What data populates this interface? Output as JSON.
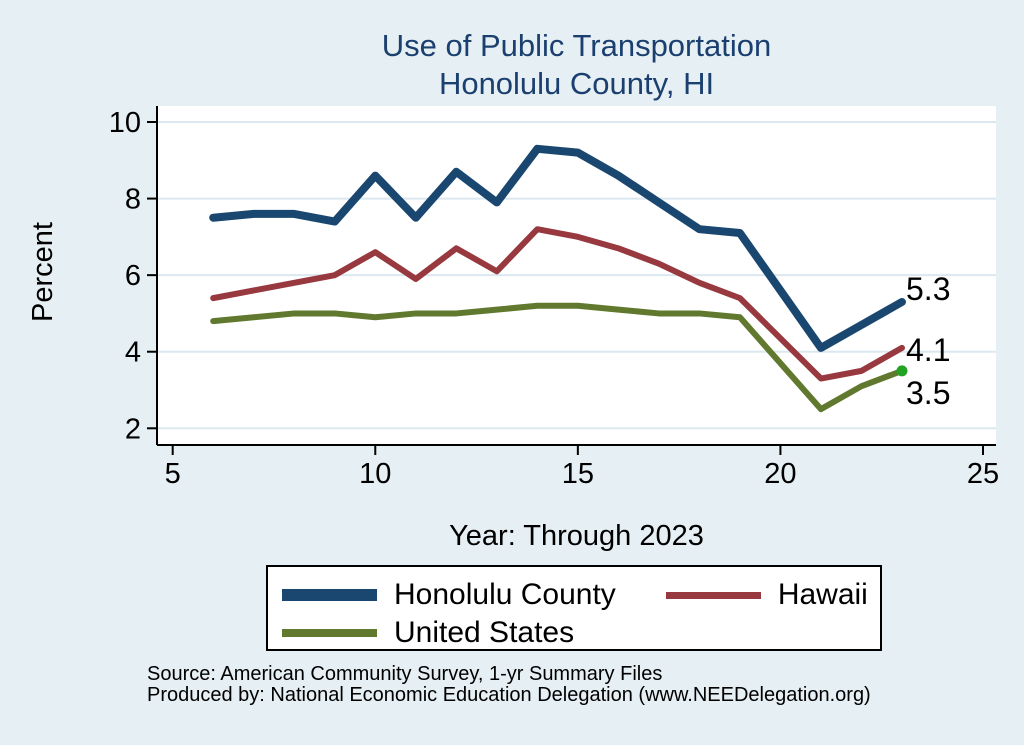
{
  "title": {
    "line1": "Use of Public Transportation",
    "line2": "Honolulu County, HI"
  },
  "chart_data": {
    "type": "line",
    "title": "Use of Public Transportation",
    "subtitle": "Honolulu County, HI",
    "xlabel": "Year: Through 2023",
    "ylabel": "Percent",
    "xlim": [
      5,
      25
    ],
    "ylim": [
      2,
      10
    ],
    "xticks": [
      5,
      10,
      15,
      20,
      25
    ],
    "yticks": [
      10,
      8,
      6,
      4,
      2
    ],
    "grid": "horizontal",
    "legend_position": "below",
    "x": [
      6,
      7,
      8,
      9,
      10,
      11,
      12,
      13,
      14,
      15,
      16,
      17,
      18,
      19,
      21,
      22,
      23
    ],
    "series": [
      {
        "name": "Honolulu County",
        "color": "#1a476f",
        "line_width": 8,
        "values": [
          7.5,
          7.6,
          7.6,
          7.4,
          8.6,
          7.5,
          8.7,
          7.9,
          9.3,
          9.2,
          8.6,
          7.9,
          7.2,
          7.1,
          4.1,
          4.7,
          5.3
        ],
        "end_label": "5.3"
      },
      {
        "name": "Hawaii",
        "color": "#97393f",
        "line_width": 6,
        "values": [
          5.4,
          5.6,
          5.8,
          6.0,
          6.6,
          5.9,
          6.7,
          6.1,
          7.2,
          7.0,
          6.7,
          6.3,
          5.8,
          5.4,
          3.3,
          3.5,
          4.1
        ],
        "end_label": "4.1"
      },
      {
        "name": "United States",
        "color": "#60792e",
        "line_width": 6,
        "values": [
          4.8,
          4.9,
          5.0,
          5.0,
          4.9,
          5.0,
          5.0,
          5.1,
          5.2,
          5.2,
          5.1,
          5.0,
          5.0,
          4.9,
          2.5,
          3.1,
          3.5
        ],
        "end_label": "3.5",
        "end_marker_color": "#22a322"
      }
    ]
  },
  "footer": {
    "source_line": "Source: American Community Survey, 1-yr Summary Files",
    "produced_line": "Produced by: National Economic Education Delegation (www.NEEDelegation.org)"
  },
  "colors": {
    "background": "#e6eff3",
    "plot_background": "#ffffff",
    "gridline": "#dbe8ef",
    "axis": "#000000",
    "title_text": "#1b4070",
    "tick_text": "#000000"
  }
}
